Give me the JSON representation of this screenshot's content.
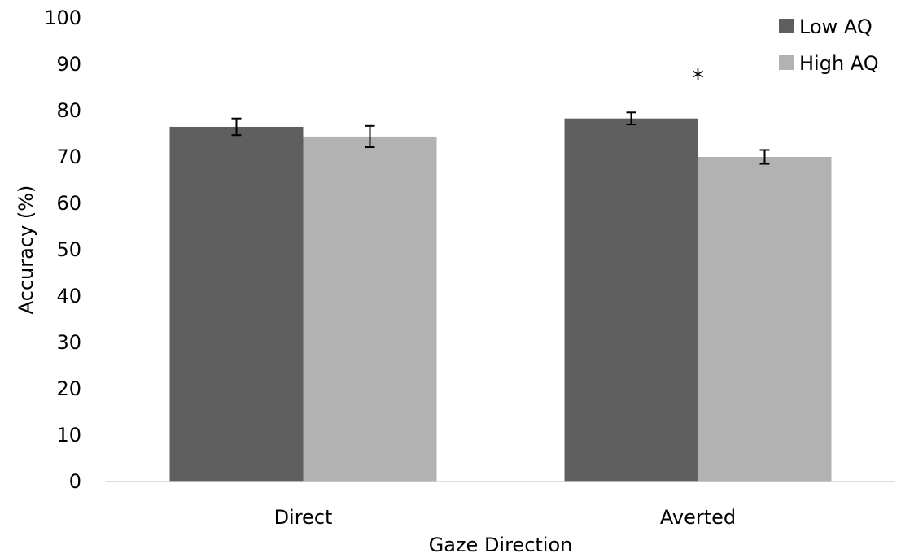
{
  "chart_data": {
    "type": "bar",
    "title": "",
    "xlabel": "Gaze Direction",
    "ylabel": "Accuracy (%)",
    "ylim": [
      0,
      100
    ],
    "yticks": [
      0,
      10,
      20,
      30,
      40,
      50,
      60,
      70,
      80,
      90,
      100
    ],
    "categories": [
      "Direct",
      "Averted"
    ],
    "series": [
      {
        "name": "Low AQ",
        "color": "#5f5f5f",
        "values": [
          76.5,
          78.3
        ],
        "error": [
          1.8,
          1.3
        ]
      },
      {
        "name": "High AQ",
        "color": "#b2b2b2",
        "values": [
          74.4,
          70.0
        ],
        "error": [
          2.3,
          1.5
        ]
      }
    ],
    "grid": false,
    "legend": "top-right",
    "annotations": [
      {
        "text": "*",
        "category": "Averted",
        "value": 88
      }
    ]
  }
}
